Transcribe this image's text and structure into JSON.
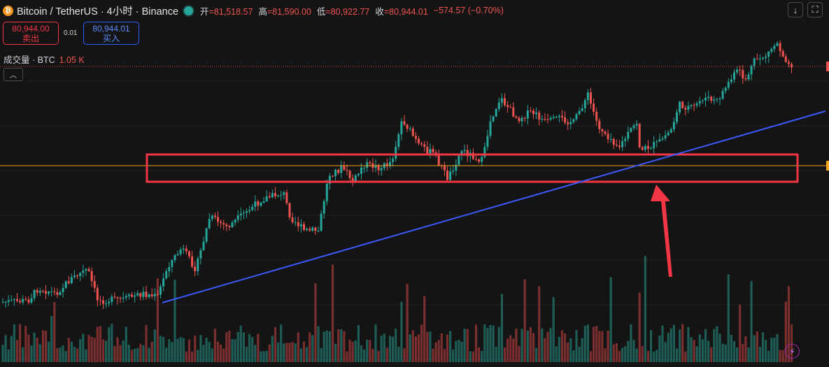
{
  "header": {
    "coin_icon": "bitcoin-icon",
    "symbol": "Bitcoin / TetherUS · 4小时 · Binance",
    "market_status_icon": "market-open-dot-icon",
    "open_label": "开",
    "open_value": "=81,518.57",
    "high_label": "高",
    "high_value": "=81,590.00",
    "low_label": "低",
    "low_value": "=80,922.77",
    "close_label": "收",
    "close_value": "=80,944.01",
    "change": "−574.57 (−0.70%)"
  },
  "trade": {
    "sell_price": "80,944.00",
    "sell_label": "卖出",
    "spread": "0.01",
    "buy_price": "80,944.01",
    "buy_label": "买入"
  },
  "volume_indicator": {
    "label": "成交量 · BTC",
    "value": "1.05 K"
  },
  "controls": {
    "collapse_icon": "chevron-up-icon",
    "download_icon": "arrow-down-icon",
    "fullscreen_icon": "fullscreen-icon",
    "bolt_icon": "lightning-icon"
  },
  "colors": {
    "background": "#141414",
    "up": "#26a69a",
    "down": "#ef5350",
    "trendline": "#3d5afe",
    "highlight_box": "#f23645",
    "price_line": "#f5a623"
  }
}
